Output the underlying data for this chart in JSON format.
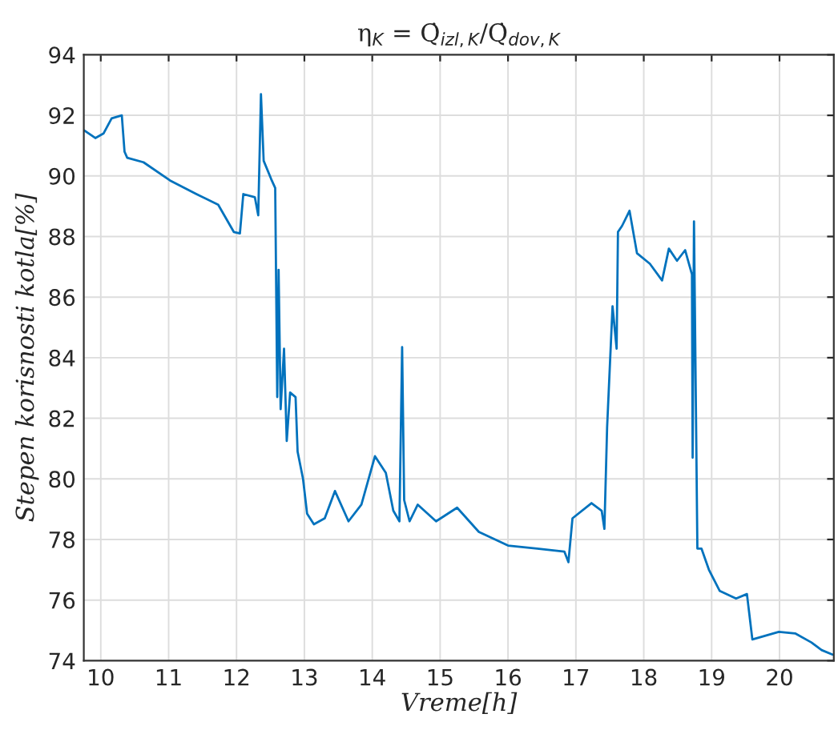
{
  "chart_data": {
    "type": "line",
    "title": "η$_{K}$ = Q̇$_{izl,K}$/Q̇$_{dov,K}$",
    "xlabel": "Vreme[h]",
    "ylabel": "Stepen korisnosti kotla[%]",
    "x": [
      9.76,
      9.92,
      10.04,
      10.16,
      10.31,
      10.35,
      10.39,
      10.63,
      11.02,
      11.41,
      11.73,
      11.96,
      12.05,
      12.1,
      12.27,
      12.32,
      12.36,
      12.4,
      12.51,
      12.57,
      12.6,
      12.62,
      12.65,
      12.7,
      12.74,
      12.79,
      12.87,
      12.9,
      12.98,
      13.04,
      13.14,
      13.3,
      13.45,
      13.65,
      13.84,
      14.04,
      14.2,
      14.31,
      14.4,
      14.44,
      14.47,
      14.55,
      14.67,
      14.94,
      15.25,
      15.57,
      16.0,
      16.43,
      16.83,
      16.89,
      16.95,
      17.23,
      17.38,
      17.42,
      17.46,
      17.54,
      17.6,
      17.62,
      17.68,
      17.79,
      17.9,
      18.09,
      18.27,
      18.37,
      18.49,
      18.61,
      18.71,
      18.72,
      18.74,
      18.79,
      18.85,
      18.96,
      19.12,
      19.36,
      19.52,
      19.6,
      19.99,
      20.23,
      20.47,
      20.62,
      20.78
    ],
    "series": [
      {
        "color": "#0072bd",
        "values": [
          91.5,
          91.25,
          91.4,
          91.9,
          92.0,
          90.8,
          90.6,
          90.45,
          89.85,
          89.4,
          89.05,
          88.15,
          88.1,
          89.4,
          89.3,
          88.7,
          92.7,
          90.5,
          89.9,
          89.6,
          82.7,
          86.9,
          82.3,
          84.3,
          81.25,
          82.85,
          82.7,
          80.9,
          80.0,
          78.85,
          78.5,
          78.7,
          79.6,
          78.6,
          79.15,
          80.75,
          80.2,
          78.95,
          78.6,
          84.35,
          79.3,
          78.6,
          79.15,
          78.6,
          79.05,
          78.25,
          77.8,
          77.7,
          77.6,
          77.25,
          78.7,
          79.2,
          78.95,
          78.35,
          81.7,
          85.7,
          84.3,
          88.15,
          88.35,
          88.85,
          87.45,
          87.1,
          86.55,
          87.6,
          87.2,
          87.55,
          86.75,
          80.7,
          88.5,
          77.7,
          77.7,
          77.0,
          76.3,
          76.05,
          76.2,
          74.7,
          74.95,
          74.9,
          74.6,
          74.35,
          74.2
        ]
      }
    ],
    "xlim": [
      9.75,
      20.8
    ],
    "xticks": [
      10,
      11,
      12,
      13,
      14,
      15,
      16,
      17,
      18,
      19,
      20
    ],
    "ylim": [
      74,
      94
    ],
    "yticks": [
      74,
      76,
      78,
      80,
      82,
      84,
      86,
      88,
      90,
      92,
      94
    ],
    "grid": true,
    "legend": false
  }
}
